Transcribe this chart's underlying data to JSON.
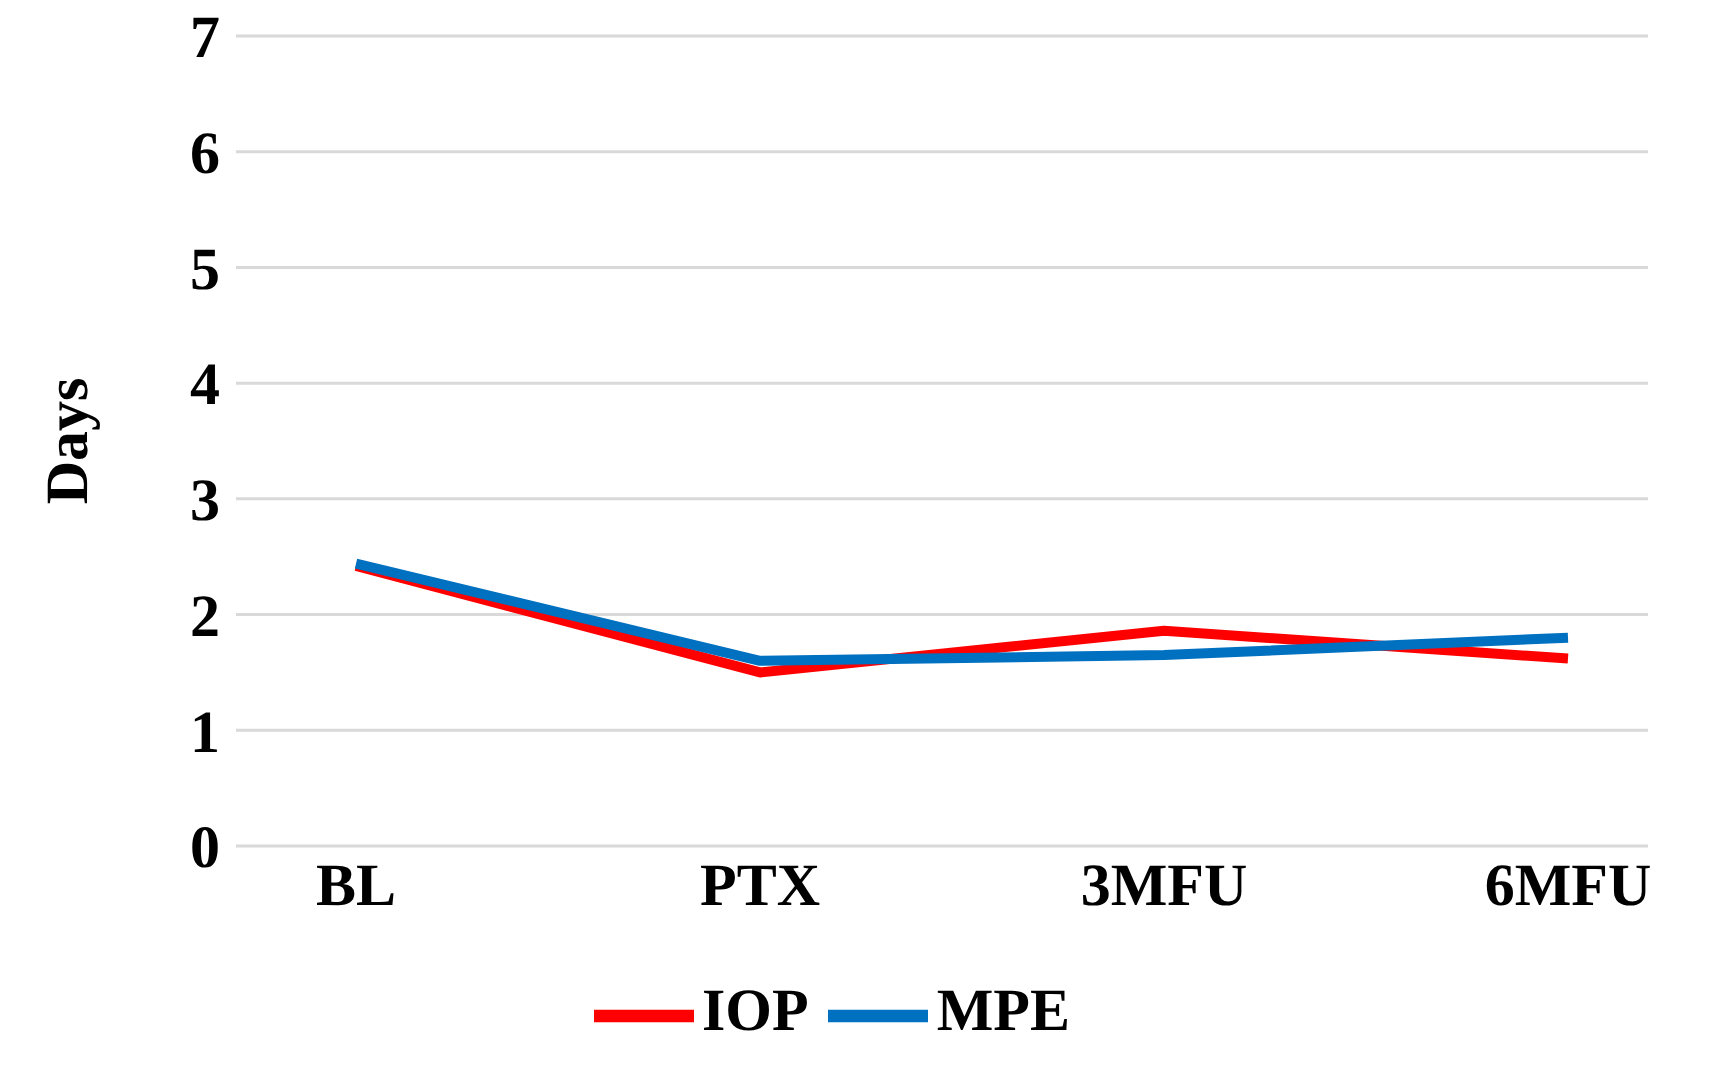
{
  "chart_data": {
    "type": "line",
    "ylabel": "Days",
    "categories": [
      "BL",
      "PTX",
      "3MFU",
      "6MFU"
    ],
    "series": [
      {
        "name": "IOP",
        "color": "#ff0000",
        "values": [
          2.42,
          1.5,
          1.86,
          1.62
        ]
      },
      {
        "name": "MPE",
        "color": "#0070c0",
        "values": [
          2.44,
          1.6,
          1.65,
          1.8
        ]
      }
    ],
    "ylim": [
      0,
      7
    ],
    "yticks": [
      0,
      1,
      2,
      3,
      4,
      5,
      6,
      7
    ],
    "grid": "y",
    "legend": "bottom",
    "marker": "none",
    "line_style": "solid"
  }
}
